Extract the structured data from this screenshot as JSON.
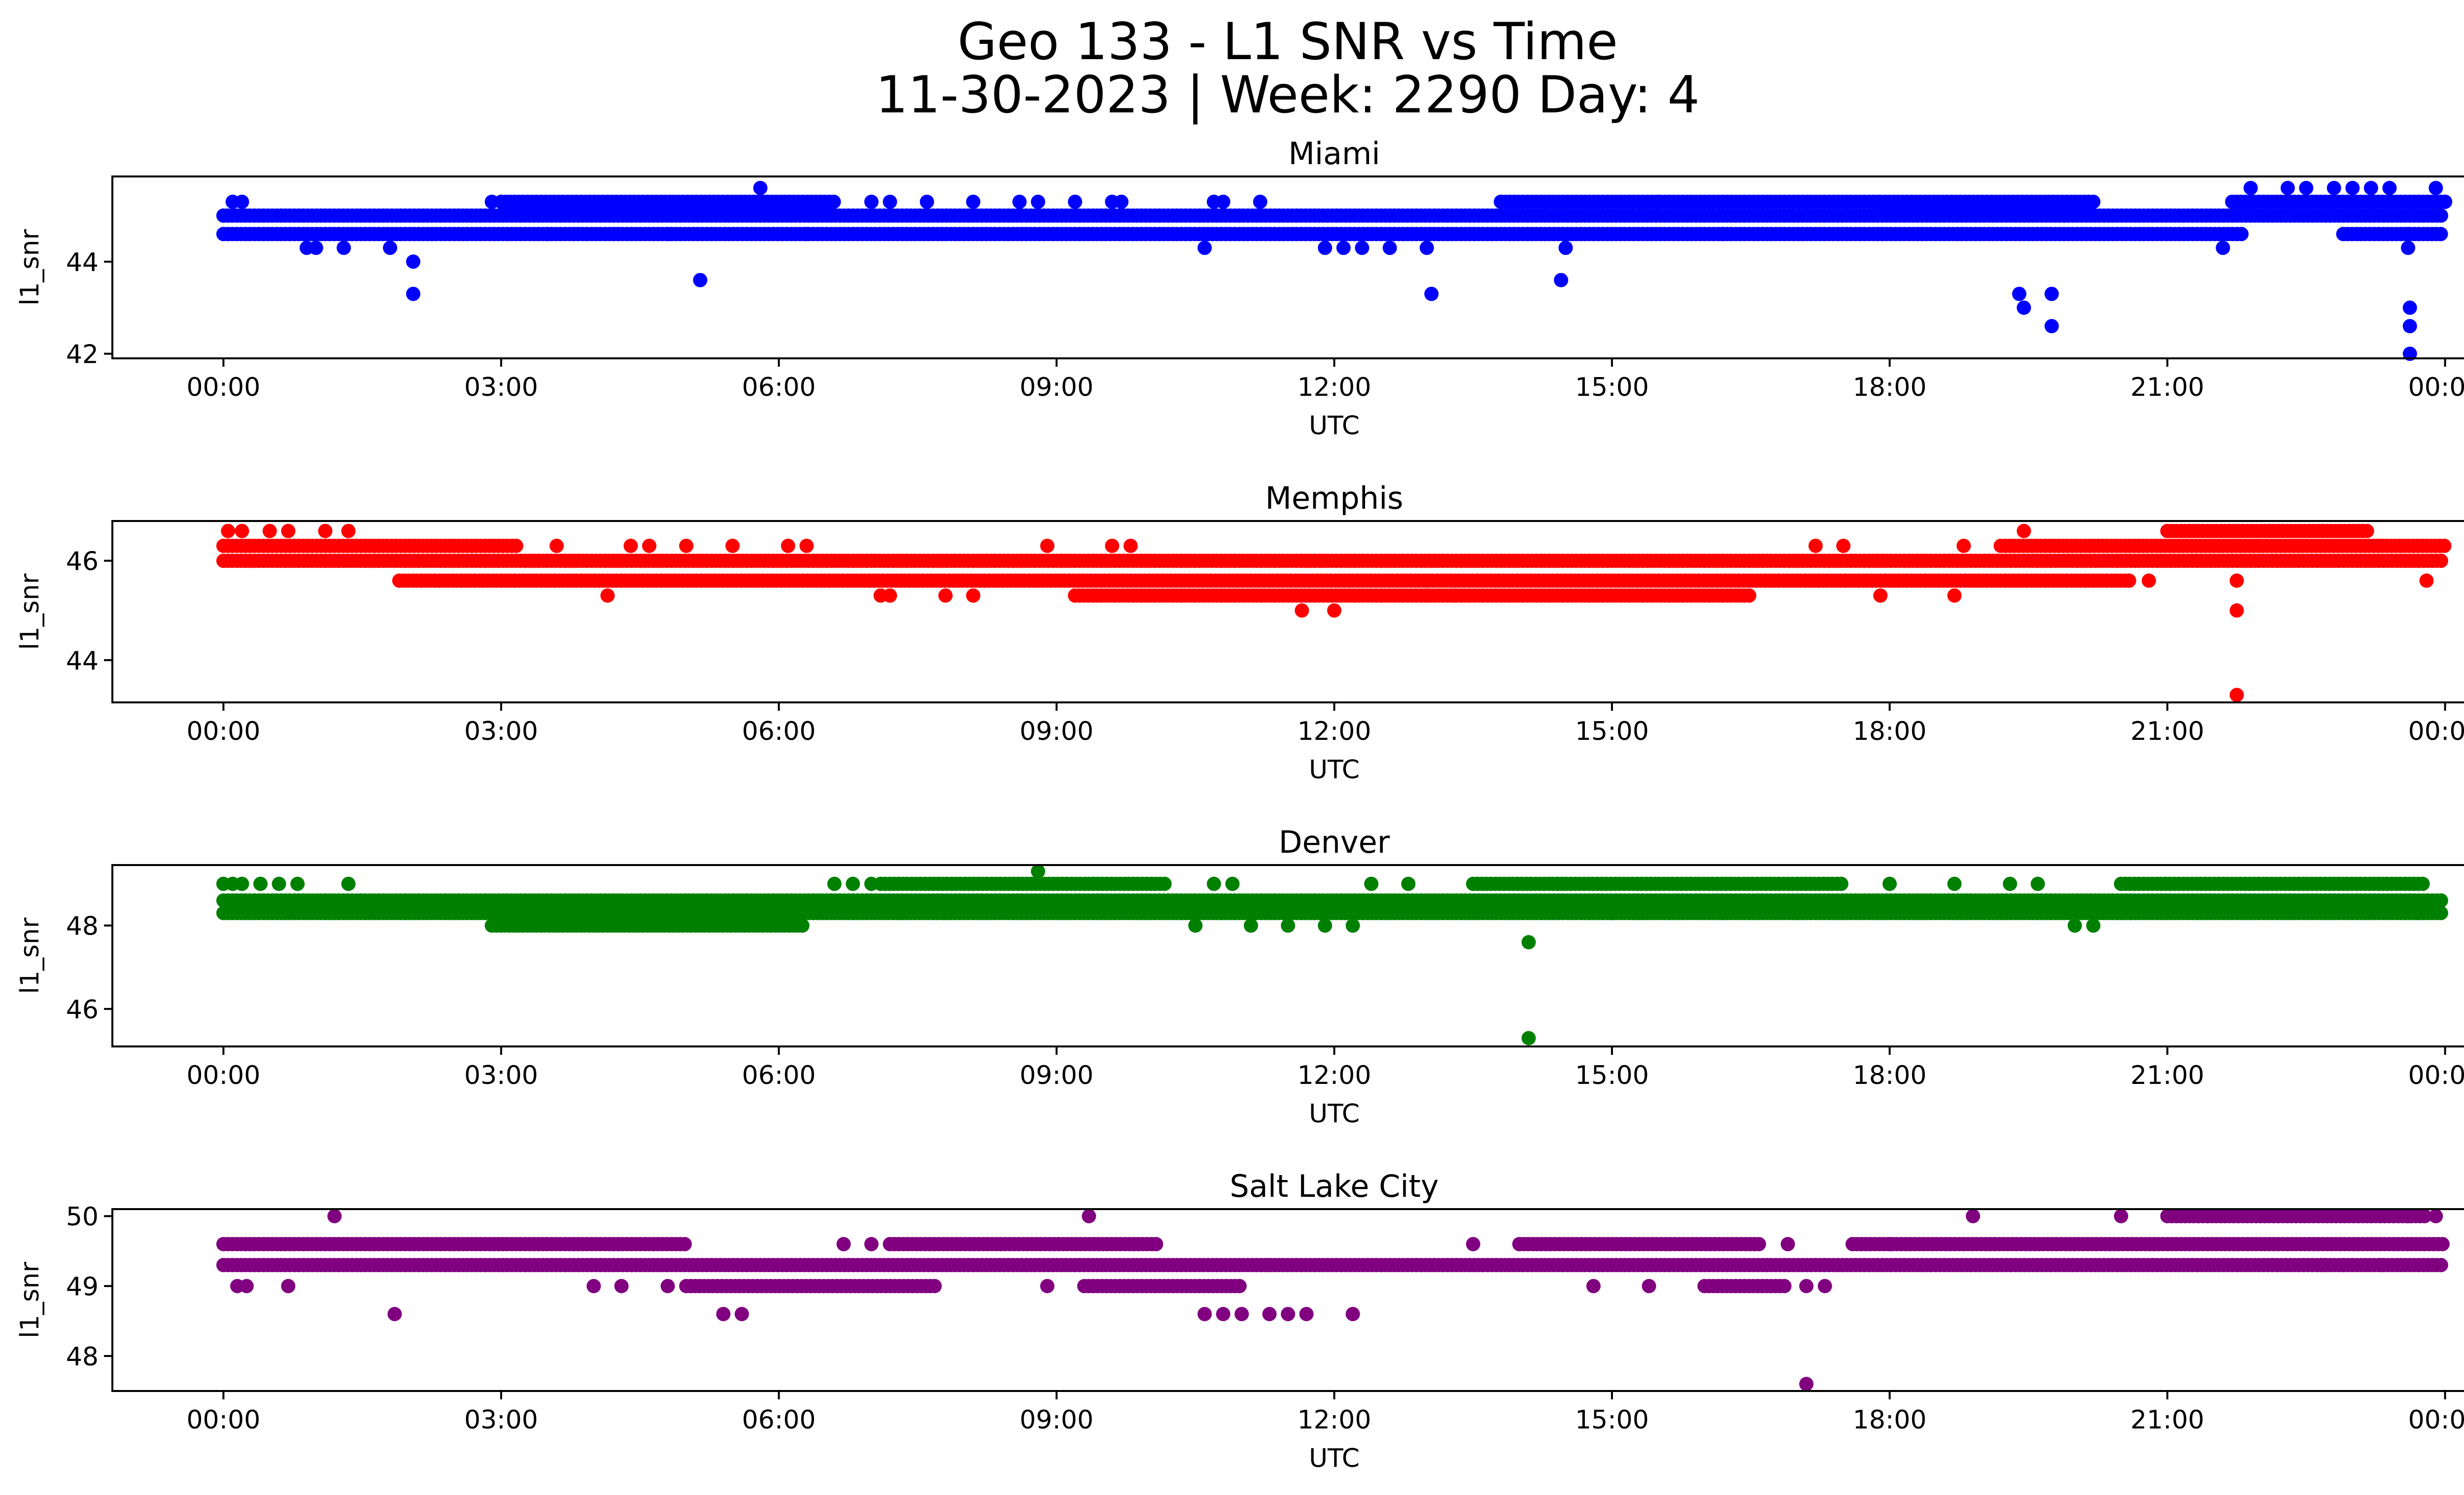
{
  "figure": {
    "title_line1": "Geo 133 - L1 SNR vs Time",
    "title_line2": "11-30-2023 | Week: 2290 Day: 4"
  },
  "chart_data": [
    {
      "type": "scatter",
      "title": "Miami",
      "xlabel": "UTC",
      "ylabel": "l1_snr",
      "color": "#0000ff",
      "x_tick_labels": [
        "00:00",
        "03:00",
        "06:00",
        "09:00",
        "12:00",
        "15:00",
        "18:00",
        "21:00",
        "00:00"
      ],
      "x_tick_hours": [
        0,
        3,
        6,
        9,
        12,
        15,
        18,
        21,
        24
      ],
      "xlim": [
        -1.2,
        25.2
      ],
      "ylim": [
        41.9,
        45.85
      ],
      "yticks": [
        42,
        44
      ],
      "x_unit": "hours UTC",
      "bands": [
        {
          "y": 45.0,
          "from": 0.0,
          "to": 24.0
        },
        {
          "y": 44.6,
          "from": 0.0,
          "to": 21.8
        },
        {
          "y": 44.6,
          "from": 22.9,
          "to": 24.0
        },
        {
          "y": 45.3,
          "from": 3.0,
          "to": 6.6
        },
        {
          "y": 45.3,
          "from": 13.8,
          "to": 17.9
        },
        {
          "y": 45.3,
          "from": 17.9,
          "to": 20.2
        },
        {
          "y": 45.3,
          "from": 21.7,
          "to": 24.0
        }
      ],
      "points": [
        [
          0.1,
          45.3
        ],
        [
          0.2,
          45.3
        ],
        [
          0.9,
          44.3
        ],
        [
          1.0,
          44.3
        ],
        [
          1.3,
          44.3
        ],
        [
          1.8,
          44.3
        ],
        [
          2.05,
          44.0
        ],
        [
          2.05,
          43.3
        ],
        [
          2.9,
          45.3
        ],
        [
          3.5,
          44.6
        ],
        [
          4.8,
          44.6
        ],
        [
          5.15,
          43.6
        ],
        [
          5.8,
          45.6
        ],
        [
          6.3,
          44.6
        ],
        [
          7.0,
          45.3
        ],
        [
          7.2,
          45.3
        ],
        [
          7.6,
          45.3
        ],
        [
          8.1,
          45.3
        ],
        [
          8.6,
          45.3
        ],
        [
          8.8,
          45.3
        ],
        [
          9.2,
          45.3
        ],
        [
          9.6,
          45.3
        ],
        [
          9.7,
          45.3
        ],
        [
          10.6,
          44.3
        ],
        [
          10.7,
          45.3
        ],
        [
          10.8,
          45.3
        ],
        [
          11.2,
          45.3
        ],
        [
          11.9,
          44.3
        ],
        [
          12.1,
          44.3
        ],
        [
          12.3,
          44.3
        ],
        [
          12.6,
          44.3
        ],
        [
          13.0,
          44.3
        ],
        [
          13.05,
          43.3
        ],
        [
          14.5,
          44.3
        ],
        [
          14.45,
          43.6
        ],
        [
          15.5,
          45.3
        ],
        [
          16.2,
          44.6
        ],
        [
          19.4,
          43.3
        ],
        [
          19.45,
          43.0
        ],
        [
          19.75,
          43.3
        ],
        [
          19.75,
          42.6
        ],
        [
          21.6,
          44.3
        ],
        [
          21.9,
          45.6
        ],
        [
          22.3,
          45.6
        ],
        [
          22.5,
          45.6
        ],
        [
          22.8,
          45.6
        ],
        [
          23.0,
          45.6
        ],
        [
          23.2,
          45.6
        ],
        [
          23.4,
          45.6
        ],
        [
          23.6,
          44.6
        ],
        [
          23.6,
          44.3
        ],
        [
          23.62,
          43.0
        ],
        [
          23.62,
          42.6
        ],
        [
          23.62,
          42.0
        ],
        [
          23.9,
          45.6
        ],
        [
          24.0,
          45.3
        ]
      ]
    },
    {
      "type": "scatter",
      "title": "Memphis",
      "xlabel": "UTC",
      "ylabel": "l1_snr",
      "color": "#ff0000",
      "x_tick_labels": [
        "00:00",
        "03:00",
        "06:00",
        "09:00",
        "12:00",
        "15:00",
        "18:00",
        "21:00",
        "00:00"
      ],
      "x_tick_hours": [
        0,
        3,
        6,
        9,
        12,
        15,
        18,
        21,
        24
      ],
      "xlim": [
        -1.2,
        25.2
      ],
      "ylim": [
        43.15,
        46.8
      ],
      "yticks": [
        44,
        46
      ],
      "x_unit": "hours UTC",
      "bands": [
        {
          "y": 46.0,
          "from": 0.0,
          "to": 24.0
        },
        {
          "y": 46.3,
          "from": 0.0,
          "to": 3.2
        },
        {
          "y": 45.6,
          "from": 1.9,
          "to": 20.6
        },
        {
          "y": 45.3,
          "from": 9.2,
          "to": 16.5
        },
        {
          "y": 46.3,
          "from": 19.2,
          "to": 24.0
        },
        {
          "y": 46.6,
          "from": 21.0,
          "to": 23.2
        }
      ],
      "points": [
        [
          0.05,
          46.6
        ],
        [
          0.2,
          46.6
        ],
        [
          0.5,
          46.6
        ],
        [
          0.7,
          46.6
        ],
        [
          1.1,
          46.6
        ],
        [
          1.35,
          46.6
        ],
        [
          2.8,
          45.6
        ],
        [
          3.6,
          46.3
        ],
        [
          4.15,
          45.3
        ],
        [
          4.4,
          46.3
        ],
        [
          4.6,
          46.3
        ],
        [
          5.0,
          46.3
        ],
        [
          5.5,
          46.3
        ],
        [
          6.1,
          46.3
        ],
        [
          6.3,
          46.3
        ],
        [
          7.1,
          45.3
        ],
        [
          7.2,
          45.3
        ],
        [
          7.8,
          45.3
        ],
        [
          8.1,
          45.3
        ],
        [
          8.9,
          46.3
        ],
        [
          9.6,
          46.3
        ],
        [
          9.8,
          46.3
        ],
        [
          11.7,
          46.0
        ],
        [
          11.65,
          45.0
        ],
        [
          11.85,
          46.0
        ],
        [
          12.0,
          45.0
        ],
        [
          13.0,
          45.3
        ],
        [
          13.3,
          45.3
        ],
        [
          17.2,
          46.3
        ],
        [
          17.5,
          46.3
        ],
        [
          17.9,
          45.3
        ],
        [
          18.7,
          45.3
        ],
        [
          18.8,
          46.3
        ],
        [
          19.45,
          46.6
        ],
        [
          20.8,
          45.6
        ],
        [
          21.75,
          45.6
        ],
        [
          21.75,
          45.0
        ],
        [
          21.75,
          43.3
        ],
        [
          23.8,
          45.6
        ]
      ]
    },
    {
      "type": "scatter",
      "title": "Denver",
      "xlabel": "UTC",
      "ylabel": "l1_snr",
      "color": "#008000",
      "x_tick_labels": [
        "00:00",
        "03:00",
        "06:00",
        "09:00",
        "12:00",
        "15:00",
        "18:00",
        "21:00",
        "00:00"
      ],
      "x_tick_hours": [
        0,
        3,
        6,
        9,
        12,
        15,
        18,
        21,
        24
      ],
      "xlim": [
        -1.2,
        25.2
      ],
      "ylim": [
        45.1,
        49.45
      ],
      "yticks": [
        46,
        48
      ],
      "x_unit": "hours UTC",
      "bands": [
        {
          "y": 48.6,
          "from": 0.0,
          "to": 24.0
        },
        {
          "y": 48.3,
          "from": 0.0,
          "to": 24.0
        },
        {
          "y": 48.0,
          "from": 2.9,
          "to": 6.3
        },
        {
          "y": 49.0,
          "from": 7.1,
          "to": 10.2
        },
        {
          "y": 49.0,
          "from": 13.5,
          "to": 17.5
        },
        {
          "y": 49.0,
          "from": 20.5,
          "to": 23.8
        }
      ],
      "points": [
        [
          0.0,
          49.0
        ],
        [
          0.1,
          49.0
        ],
        [
          0.2,
          49.0
        ],
        [
          0.4,
          49.0
        ],
        [
          0.6,
          49.0
        ],
        [
          0.8,
          49.0
        ],
        [
          1.35,
          49.0
        ],
        [
          6.6,
          49.0
        ],
        [
          6.8,
          49.0
        ],
        [
          7.0,
          49.0
        ],
        [
          7.3,
          48.3
        ],
        [
          7.8,
          48.3
        ],
        [
          8.8,
          49.3
        ],
        [
          10.5,
          48.0
        ],
        [
          10.7,
          49.0
        ],
        [
          10.9,
          49.0
        ],
        [
          11.1,
          48.0
        ],
        [
          11.5,
          48.0
        ],
        [
          11.9,
          48.0
        ],
        [
          12.2,
          48.0
        ],
        [
          12.4,
          49.0
        ],
        [
          12.8,
          49.0
        ],
        [
          14.1,
          47.6
        ],
        [
          14.1,
          45.3
        ],
        [
          15.0,
          48.3
        ],
        [
          15.3,
          48.3
        ],
        [
          16.2,
          48.3
        ],
        [
          17.0,
          48.3
        ],
        [
          18.0,
          49.0
        ],
        [
          18.7,
          49.0
        ],
        [
          19.3,
          49.0
        ],
        [
          19.6,
          49.0
        ],
        [
          20.0,
          48.0
        ],
        [
          20.2,
          48.0
        ],
        [
          20.6,
          48.3
        ],
        [
          23.7,
          48.3
        ]
      ]
    },
    {
      "type": "scatter",
      "title": "Salt Lake City",
      "xlabel": "UTC",
      "ylabel": "l1_snr",
      "color": "#800080",
      "x_tick_labels": [
        "00:00",
        "03:00",
        "06:00",
        "09:00",
        "12:00",
        "15:00",
        "18:00",
        "21:00",
        "00:00"
      ],
      "x_tick_hours": [
        0,
        3,
        6,
        9,
        12,
        15,
        18,
        21,
        24
      ],
      "xlim": [
        -1.2,
        25.2
      ],
      "ylim": [
        47.5,
        50.1
      ],
      "yticks": [
        48,
        49,
        50
      ],
      "x_unit": "hours UTC",
      "bands": [
        {
          "y": 49.3,
          "from": 0.0,
          "to": 24.0
        },
        {
          "y": 49.6,
          "from": 0.0,
          "to": 5.0
        },
        {
          "y": 49.6,
          "from": 7.2,
          "to": 10.1
        },
        {
          "y": 49.6,
          "from": 14.0,
          "to": 16.6
        },
        {
          "y": 49.6,
          "from": 17.6,
          "to": 24.0
        },
        {
          "y": 49.0,
          "from": 5.0,
          "to": 7.7
        },
        {
          "y": 49.0,
          "from": 9.3,
          "to": 11.0
        },
        {
          "y": 49.0,
          "from": 16.0,
          "to": 16.9
        },
        {
          "y": 50.0,
          "from": 21.0,
          "to": 23.8
        }
      ],
      "points": [
        [
          0.15,
          49.0
        ],
        [
          0.25,
          49.0
        ],
        [
          0.7,
          49.0
        ],
        [
          1.2,
          50.0
        ],
        [
          1.85,
          48.6
        ],
        [
          4.0,
          49.0
        ],
        [
          4.3,
          49.0
        ],
        [
          4.8,
          49.0
        ],
        [
          5.4,
          48.6
        ],
        [
          5.6,
          48.6
        ],
        [
          6.7,
          49.6
        ],
        [
          7.0,
          49.6
        ],
        [
          8.9,
          49.0
        ],
        [
          9.35,
          50.0
        ],
        [
          10.6,
          48.6
        ],
        [
          10.8,
          48.6
        ],
        [
          11.0,
          48.6
        ],
        [
          11.3,
          48.6
        ],
        [
          11.5,
          48.6
        ],
        [
          11.7,
          48.6
        ],
        [
          12.2,
          48.6
        ],
        [
          11.3,
          49.3
        ],
        [
          13.5,
          49.6
        ],
        [
          14.0,
          49.6
        ],
        [
          14.8,
          49.0
        ],
        [
          15.4,
          49.0
        ],
        [
          16.9,
          49.6
        ],
        [
          17.1,
          47.6
        ],
        [
          17.1,
          49.0
        ],
        [
          17.3,
          49.0
        ],
        [
          18.0,
          49.6
        ],
        [
          18.9,
          50.0
        ],
        [
          20.5,
          50.0
        ],
        [
          22.7,
          49.3
        ],
        [
          22.9,
          49.3
        ],
        [
          23.3,
          49.3
        ],
        [
          23.6,
          50.0
        ],
        [
          23.9,
          50.0
        ]
      ]
    }
  ]
}
